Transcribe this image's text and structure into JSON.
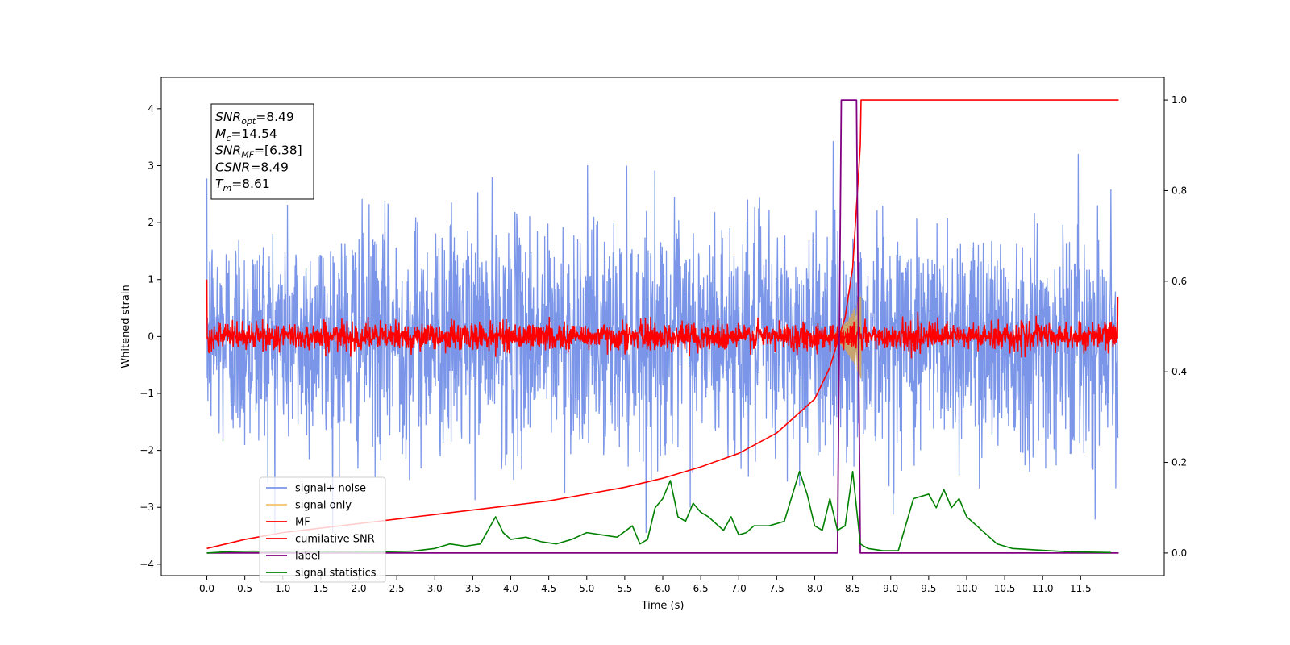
{
  "chart_data": {
    "type": "line",
    "xlabel": "Time (s)",
    "ylabel": "Whitened strain",
    "xlim": [
      -0.6,
      12.6
    ],
    "ylim": [
      -4.2,
      4.55
    ],
    "y2lim": [
      -0.05,
      1.05
    ],
    "x_ticks": [
      "0.0",
      "0.5",
      "1.0",
      "1.5",
      "2.0",
      "2.5",
      "3.0",
      "3.5",
      "4.0",
      "4.5",
      "5.0",
      "5.5",
      "6.0",
      "6.5",
      "7.0",
      "7.5",
      "8.0",
      "8.5",
      "9.0",
      "9.5",
      "10.0",
      "10.5",
      "11.0",
      "11.5"
    ],
    "y_ticks": [
      "4",
      "3",
      "2",
      "1",
      "0",
      "−1",
      "−2",
      "−3",
      "−4"
    ],
    "y2_ticks": [
      "1.0",
      "0.8",
      "0.6",
      "0.4",
      "0.2",
      "0.0"
    ],
    "info_box": [
      {
        "sym": "SNR",
        "sub": "opt",
        "value": "=8.49"
      },
      {
        "sym": "M",
        "sub": "c",
        "value": "=14.54"
      },
      {
        "sym": "SNR",
        "sub": "MF",
        "value": "=[6.38]"
      },
      {
        "sym": "CSNR",
        "sub": "",
        "value": "=8.49"
      },
      {
        "sym": "T",
        "sub": "m",
        "value": "=8.61"
      }
    ],
    "legend_position": "lower-left",
    "legend": [
      "signal+ noise",
      "signal only",
      "MF",
      "cumilative SNR",
      "label",
      "signal statistics"
    ],
    "colors": {
      "signal_noise": "#7b96e8",
      "signal_only": "#f5c36b",
      "mf": "#ff0000",
      "cumulative_snr": "#ff0000",
      "label": "#800080",
      "signal_statistics": "#008000"
    },
    "series": [
      {
        "name": "signal+ noise",
        "axis": "left",
        "style": "noise",
        "x_range": [
          0,
          11.99
        ],
        "amplitude_std": 1.0,
        "envelope_max": 3.45
      },
      {
        "name": "signal only",
        "axis": "left",
        "style": "chirp",
        "x_range": [
          8.1,
          8.61
        ],
        "peak_amplitude": 0.75
      },
      {
        "name": "MF",
        "axis": "left",
        "style": "noise",
        "x_range": [
          0,
          11.99
        ],
        "amplitude_std": 0.12,
        "start_value": 1.0,
        "end_value": 0.7
      },
      {
        "name": "cumilative SNR",
        "axis": "right",
        "x": [
          0,
          0.5,
          1.0,
          1.5,
          2.0,
          2.5,
          3.0,
          3.5,
          4.0,
          4.5,
          5.0,
          5.5,
          6.0,
          6.5,
          7.0,
          7.5,
          8.0,
          8.2,
          8.4,
          8.5,
          8.6,
          8.61,
          12.0
        ],
        "y": [
          0.01,
          0.03,
          0.045,
          0.055,
          0.065,
          0.075,
          0.085,
          0.095,
          0.105,
          0.115,
          0.13,
          0.145,
          0.165,
          0.19,
          0.22,
          0.265,
          0.34,
          0.41,
          0.52,
          0.63,
          0.9,
          1.0,
          1.0
        ]
      },
      {
        "name": "label",
        "axis": "right",
        "x": [
          0,
          8.3,
          8.35,
          8.55,
          8.6,
          12.0
        ],
        "y": [
          0,
          0,
          1,
          1,
          0,
          0
        ]
      },
      {
        "name": "signal statistics",
        "axis": "right",
        "x": [
          0,
          0.3,
          0.6,
          0.9,
          1.2,
          1.5,
          1.8,
          2.1,
          2.4,
          2.7,
          3.0,
          3.2,
          3.4,
          3.6,
          3.8,
          3.9,
          4.0,
          4.2,
          4.4,
          4.6,
          4.8,
          5.0,
          5.2,
          5.4,
          5.6,
          5.7,
          5.8,
          5.9,
          6.0,
          6.1,
          6.2,
          6.3,
          6.4,
          6.5,
          6.6,
          6.8,
          6.9,
          7.0,
          7.1,
          7.2,
          7.4,
          7.6,
          7.8,
          7.9,
          8.0,
          8.1,
          8.2,
          8.3,
          8.4,
          8.5,
          8.6,
          8.7,
          8.9,
          9.1,
          9.3,
          9.5,
          9.6,
          9.7,
          9.8,
          9.9,
          10.0,
          10.2,
          10.4,
          10.6,
          10.8,
          11.0,
          11.3,
          11.6,
          11.9
        ],
        "y": [
          0,
          0.003,
          0.004,
          0.003,
          0.004,
          0.002,
          0.003,
          0.002,
          0.003,
          0.004,
          0.01,
          0.02,
          0.015,
          0.02,
          0.08,
          0.045,
          0.03,
          0.035,
          0.025,
          0.02,
          0.03,
          0.045,
          0.04,
          0.035,
          0.06,
          0.02,
          0.03,
          0.1,
          0.12,
          0.16,
          0.08,
          0.07,
          0.11,
          0.09,
          0.08,
          0.05,
          0.08,
          0.04,
          0.045,
          0.06,
          0.06,
          0.07,
          0.18,
          0.13,
          0.06,
          0.05,
          0.12,
          0.05,
          0.06,
          0.18,
          0.02,
          0.01,
          0.005,
          0.005,
          0.12,
          0.13,
          0.1,
          0.14,
          0.1,
          0.12,
          0.08,
          0.05,
          0.02,
          0.01,
          0.008,
          0.006,
          0.003,
          0.002,
          0.001
        ]
      }
    ]
  }
}
